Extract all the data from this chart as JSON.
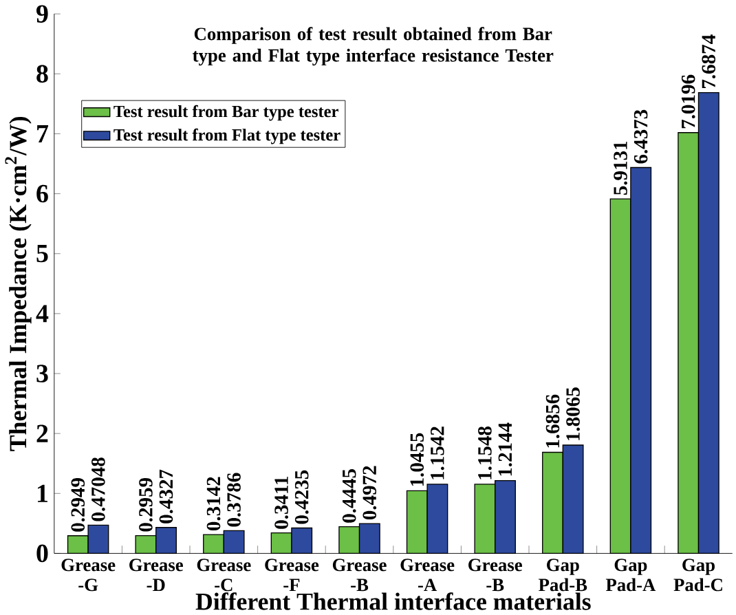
{
  "chart_data": {
    "type": "bar",
    "title": "Comparison of test result obtained from Bar type and Flat type interface resistance Tester",
    "xlabel": "Different Thermal interface materials",
    "ylabel": "Thermal Impedance (K·cm$^{2}$/W)",
    "categories": [
      "Grease -G",
      "Grease -D",
      "Grease -C",
      "Grease -F",
      "Grease -B",
      "Grease -A",
      "Grease -B",
      "Gap Pad-B",
      "Gap Pad-A",
      "Gap Pad-C"
    ],
    "series": [
      {
        "name": "Test result from Bar type tester",
        "color": "#6cbf47",
        "values": [
          0.2949,
          0.2959,
          0.3142,
          0.3411,
          0.4445,
          1.0455,
          1.1548,
          1.6856,
          5.9131,
          7.0196
        ]
      },
      {
        "name": "Test result from Flat type tester",
        "color": "#2e4a9e",
        "values": [
          0.47048,
          0.4327,
          0.3786,
          0.4235,
          0.4972,
          1.1542,
          1.2144,
          1.8065,
          6.4373,
          7.6874
        ]
      }
    ],
    "ylim": [
      0,
      9
    ],
    "yticks": [
      0,
      1,
      2,
      3,
      4,
      5,
      6,
      7,
      8,
      9
    ],
    "data_labels": true,
    "legend": "top left"
  }
}
